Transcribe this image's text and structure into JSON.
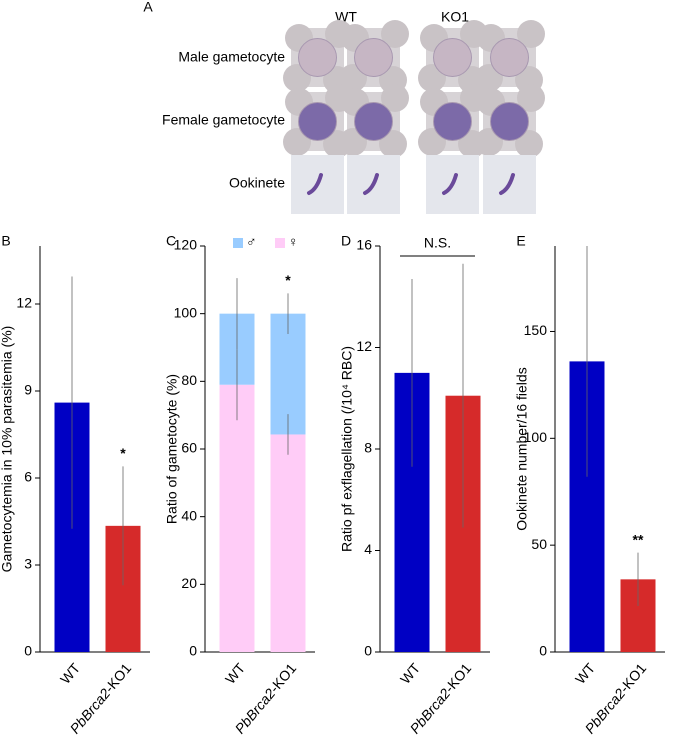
{
  "panel_a": {
    "panel": "A",
    "columns": [
      "WT",
      "KO1"
    ],
    "rows": [
      "Male gametocyte",
      "Female gametocyte",
      "Ookinete"
    ]
  },
  "chart_data": [
    {
      "type": "bar",
      "panel": "B",
      "categories": [
        "WT",
        "PbBrca2-KO1"
      ],
      "values": [
        8.6,
        4.35
      ],
      "errors": [
        4.35,
        2.05
      ],
      "colors": [
        "#0000c4",
        "#d62a2a"
      ],
      "ylabel": "Gametocytemia in 10% parasitemia (%)",
      "ylim": [
        0,
        14
      ],
      "yticks": [
        0,
        3,
        6,
        9,
        12
      ],
      "annotations": [
        null,
        "*"
      ]
    },
    {
      "type": "stacked_bar",
      "panel": "C",
      "categories": [
        "WT",
        "PbBrca2-KO1"
      ],
      "series": [
        {
          "name": "♀",
          "color": "#ffccf7",
          "values": [
            79,
            64.3
          ],
          "errors": [
            10.5,
            6
          ]
        },
        {
          "name": "♂",
          "color": "#99ccff",
          "values": [
            21,
            35.7
          ],
          "errors": [
            10.5,
            6
          ]
        }
      ],
      "ylabel": "Ratio of gametocyte (%)",
      "ylim": [
        0,
        120
      ],
      "yticks": [
        0,
        20,
        40,
        60,
        80,
        100,
        120
      ],
      "annotations": [
        null,
        "*"
      ]
    },
    {
      "type": "bar",
      "panel": "D",
      "categories": [
        "WT",
        "PbBrca2-KO1"
      ],
      "values": [
        11.0,
        10.1
      ],
      "errors": [
        3.7,
        5.2
      ],
      "colors": [
        "#0000c4",
        "#d62a2a"
      ],
      "ylabel": "Ratio pf exflagellation (/10⁴ RBC)",
      "ylim": [
        0,
        16
      ],
      "yticks": [
        0,
        4,
        8,
        12,
        16
      ],
      "bracket_label": "N.S."
    },
    {
      "type": "bar",
      "panel": "E",
      "categories": [
        "WT",
        "PbBrca2-KO1"
      ],
      "values": [
        136,
        34
      ],
      "errors": [
        54,
        12.5
      ],
      "colors": [
        "#0000c4",
        "#d62a2a"
      ],
      "ylabel": "Ookinete number/16 fields",
      "ylim": [
        0,
        190
      ],
      "yticks": [
        0,
        50,
        100,
        150
      ],
      "annotations": [
        null,
        "**"
      ]
    }
  ]
}
